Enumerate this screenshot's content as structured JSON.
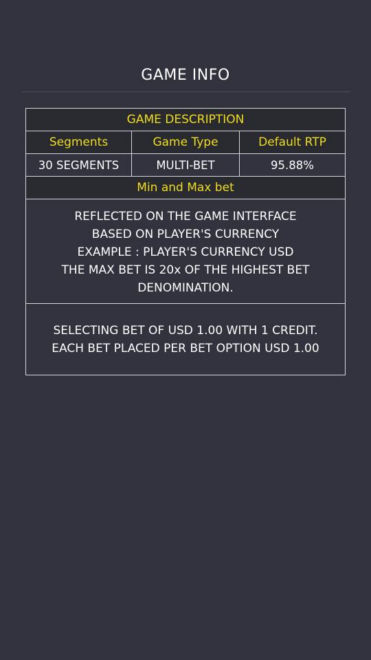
{
  "page": {
    "title": "GAME INFO"
  },
  "table": {
    "header": "GAME DESCRIPTION",
    "columns": [
      "Segments",
      "Game Type",
      "Default RTP"
    ],
    "values": [
      "30 SEGMENTS",
      "MULTI-BET",
      "95.88%"
    ],
    "min_max_header": "Min and Max bet",
    "description_lines": [
      "REFLECTED ON THE GAME INTERFACE",
      "BASED ON PLAYER'S CURRENCY",
      "EXAMPLE : PLAYER'S CURRENCY USD",
      "THE MAX BET IS 20x OF THE HIGHEST BET",
      "DENOMINATION."
    ],
    "example_lines": [
      "SELECTING BET OF USD 1.00 WITH 1 CREDIT.",
      "EACH BET PLACED PER BET OPTION USD 1.00"
    ]
  },
  "colors": {
    "background": "#32323e",
    "accent": "#f0de1e",
    "border": "#d8d8dc"
  }
}
